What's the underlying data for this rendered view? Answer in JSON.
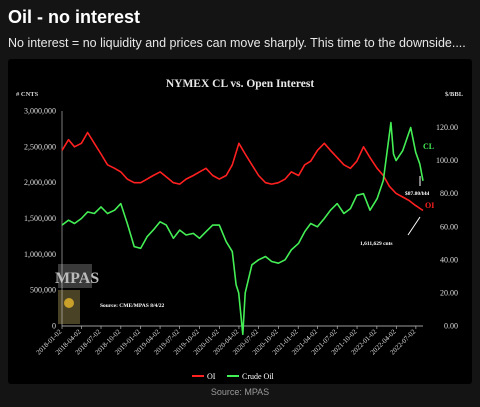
{
  "header": {
    "title": "Oil - no interest",
    "subtitle": "No interest = no liquidity and prices can move sharply. This time to the downside...."
  },
  "footer": {
    "source": "Source: MPAS"
  },
  "chart_data": {
    "type": "line",
    "title": "NYMEX CL vs. Open Interest",
    "left_unit": "# CNTS",
    "right_unit": "$/BBL",
    "y_left": {
      "range": [
        0,
        3000000
      ],
      "ticks": [
        "3,000,000",
        "2,500,000",
        "2,000,000",
        "1,500,000",
        "1,000,000",
        "500,000",
        "0"
      ]
    },
    "y_right": {
      "range": [
        0,
        130
      ],
      "ticks": [
        "120.00",
        "100.00",
        "80.00",
        "60.00",
        "40.00",
        "20.00",
        "0.00"
      ]
    },
    "x_ticks": [
      "2018-01-02",
      "2018-04-02",
      "2018-07-02",
      "2018-10-02",
      "2019-01-02",
      "2019-04-02",
      "2019-07-02",
      "2019-10-02",
      "2020-01-02",
      "2020-04-02",
      "2020-07-02",
      "2020-10-02",
      "2021-01-02",
      "2021-04-02",
      "2021-07-02",
      "2021-10-02",
      "2022-01-02",
      "2022-04-02",
      "2022-07-02"
    ],
    "x_range": [
      "2018-01-02",
      "2022-08-04"
    ],
    "grid": false,
    "legend_position": "bottom",
    "colors": {
      "oi": "#ff2020",
      "crude": "#44ee55",
      "bg": "#000000",
      "axis": "#cfcfcf"
    },
    "series": [
      {
        "name": "OI",
        "axis": "left",
        "x": [
          "2018-01-02",
          "2018-02-01",
          "2018-03-01",
          "2018-04-02",
          "2018-05-01",
          "2018-06-01",
          "2018-07-02",
          "2018-08-01",
          "2018-09-03",
          "2018-10-02",
          "2018-11-01",
          "2018-12-03",
          "2019-01-02",
          "2019-02-01",
          "2019-03-01",
          "2019-04-02",
          "2019-05-01",
          "2019-06-03",
          "2019-07-02",
          "2019-08-01",
          "2019-09-03",
          "2019-10-02",
          "2019-11-01",
          "2019-12-02",
          "2020-01-02",
          "2020-02-03",
          "2020-03-02",
          "2020-04-02",
          "2020-05-01",
          "2020-06-01",
          "2020-07-02",
          "2020-08-03",
          "2020-09-01",
          "2020-10-02",
          "2020-11-02",
          "2020-12-01",
          "2021-01-04",
          "2021-02-01",
          "2021-03-01",
          "2021-04-01",
          "2021-05-03",
          "2021-06-01",
          "2021-07-02",
          "2021-08-02",
          "2021-09-01",
          "2021-10-01",
          "2021-11-01",
          "2021-12-01",
          "2022-01-03",
          "2022-02-01",
          "2022-03-01",
          "2022-04-01",
          "2022-05-02",
          "2022-06-01",
          "2022-07-01",
          "2022-08-04"
        ],
        "values": [
          2450000,
          2600000,
          2500000,
          2550000,
          2700000,
          2550000,
          2400000,
          2250000,
          2200000,
          2150000,
          2050000,
          2000000,
          2000000,
          2050000,
          2100000,
          2150000,
          2080000,
          2000000,
          1980000,
          2050000,
          2100000,
          2150000,
          2200000,
          2100000,
          2050000,
          2100000,
          2250000,
          2550000,
          2400000,
          2250000,
          2100000,
          2000000,
          1980000,
          2000000,
          2050000,
          2150000,
          2100000,
          2250000,
          2300000,
          2450000,
          2550000,
          2450000,
          2350000,
          2250000,
          2200000,
          2300000,
          2500000,
          2350000,
          2200000,
          2100000,
          1950000,
          1850000,
          1800000,
          1750000,
          1680000,
          1611629
        ]
      },
      {
        "name": "Crude Oil",
        "axis": "right",
        "x": [
          "2018-01-02",
          "2018-02-01",
          "2018-03-01",
          "2018-04-02",
          "2018-05-01",
          "2018-06-01",
          "2018-07-02",
          "2018-08-01",
          "2018-09-03",
          "2018-10-02",
          "2018-11-01",
          "2018-12-03",
          "2019-01-02",
          "2019-02-01",
          "2019-03-01",
          "2019-04-02",
          "2019-05-01",
          "2019-06-03",
          "2019-07-02",
          "2019-08-01",
          "2019-09-03",
          "2019-10-02",
          "2019-11-01",
          "2019-12-02",
          "2020-01-02",
          "2020-02-03",
          "2020-03-02",
          "2020-03-20",
          "2020-04-01",
          "2020-04-20",
          "2020-05-01",
          "2020-06-01",
          "2020-07-02",
          "2020-08-03",
          "2020-09-01",
          "2020-10-02",
          "2020-11-02",
          "2020-12-01",
          "2021-01-04",
          "2021-02-01",
          "2021-03-01",
          "2021-04-01",
          "2021-05-03",
          "2021-06-01",
          "2021-07-02",
          "2021-08-02",
          "2021-09-01",
          "2021-10-01",
          "2021-11-01",
          "2021-12-01",
          "2022-01-03",
          "2022-02-01",
          "2022-03-08",
          "2022-03-20",
          "2022-04-01",
          "2022-05-02",
          "2022-06-08",
          "2022-07-01",
          "2022-07-20",
          "2022-08-04"
        ],
        "values": [
          61,
          64,
          62,
          65,
          69,
          68,
          72,
          68,
          70,
          74,
          62,
          48,
          47,
          54,
          58,
          63,
          61,
          53,
          58,
          55,
          56,
          53,
          57,
          61,
          61,
          51,
          45,
          25,
          20,
          -5,
          20,
          37,
          40,
          42,
          39,
          38,
          40,
          46,
          50,
          57,
          62,
          60,
          65,
          70,
          74,
          68,
          71,
          79,
          80,
          70,
          77,
          88,
          123,
          104,
          100,
          106,
          120,
          105,
          98,
          87.8
        ]
      }
    ],
    "annotations": {
      "cl_label": "CL",
      "oi_label": "OI",
      "price_note": "$87.80/bbl",
      "oi_note": "1,611,629 cnts",
      "source_note": "Source: CME/MPAS 8/4/22",
      "logo_text": "MPAS"
    }
  }
}
